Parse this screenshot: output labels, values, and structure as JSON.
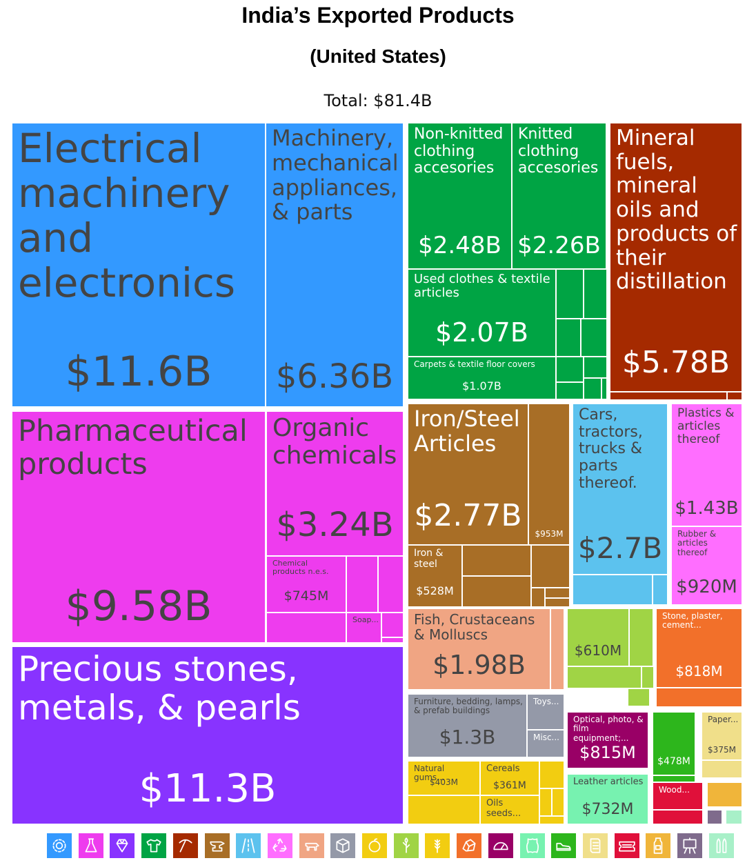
{
  "title": "India’s Exported Products",
  "subtitle": "(United States)",
  "total": "Total: $81.4B",
  "chart_data": {
    "type": "treemap",
    "title": "India’s Exported Products",
    "subtitle": "(United States)",
    "total": "$81.4B",
    "items": [
      {
        "id": "electrical",
        "label": "Electrical machinery and electronics",
        "value": "$11.6B",
        "color": "#3399ff"
      },
      {
        "id": "machinery",
        "label": "Machinery, mechanical appliances, & parts",
        "value": "$6.36B",
        "color": "#3399ff"
      },
      {
        "id": "nonknit",
        "label": "Non-knitted clothing accesories",
        "value": "$2.48B",
        "color": "#00a444"
      },
      {
        "id": "knit",
        "label": "Knitted clothing accesories",
        "value": "$2.26B",
        "color": "#00a444"
      },
      {
        "id": "usedclothes",
        "label": "Used clothes & textile articles",
        "value": "$2.07B",
        "color": "#00a444"
      },
      {
        "id": "carpets",
        "label": "Carpets & textile floor covers",
        "value": "$1.07B",
        "color": "#00a444"
      },
      {
        "id": "mineral",
        "label": "Mineral fuels, mineral oils and products of their distillation",
        "value": "$5.78B",
        "color": "#a52a00"
      },
      {
        "id": "pharma",
        "label": "Pharmaceutical products",
        "value": "$9.58B",
        "color": "#ee3cee"
      },
      {
        "id": "organic",
        "label": "Organic chemicals",
        "value": "$3.24B",
        "color": "#ee3cee"
      },
      {
        "id": "chemical",
        "label": "Chemical products n.e.s.",
        "value": "$745M",
        "color": "#ee3cee"
      },
      {
        "id": "soap",
        "label": "Soap...",
        "value": "",
        "color": "#ee3cee"
      },
      {
        "id": "precious",
        "label": "Precious stones, metals, & pearls",
        "value": "$11.3B",
        "color": "#8833ff"
      },
      {
        "id": "ironsteelart",
        "label": "Iron/Steel Articles",
        "value": "$2.77B",
        "color": "#a86e26"
      },
      {
        "id": "metal953",
        "label": "",
        "value": "$953M",
        "color": "#a86e26"
      },
      {
        "id": "ironsteel",
        "label": "Iron & steel",
        "value": "$528M",
        "color": "#a86e26"
      },
      {
        "id": "cars",
        "label": "Cars, tractors, trucks & parts thereof.",
        "value": "$2.7B",
        "color": "#5cc2ee"
      },
      {
        "id": "plastics",
        "label": "Plastics & articles thereof",
        "value": "$1.43B",
        "color": "#ff6eff"
      },
      {
        "id": "rubber",
        "label": "Rubber & articles thereof",
        "value": "$920M",
        "color": "#ff6eff"
      },
      {
        "id": "fish",
        "label": "Fish, Crustaceans & Molluscs",
        "value": "$1.98B",
        "color": "#f0a583"
      },
      {
        "id": "veg610",
        "label": "",
        "value": "$610M",
        "color": "#a0d445"
      },
      {
        "id": "stone",
        "label": "Stone, plaster, cement...",
        "value": "$818M",
        "color": "#f2702a"
      },
      {
        "id": "furniture",
        "label": "Furniture, bedding, lamps, & prefab buildings",
        "value": "$1.3B",
        "color": "#9499a8"
      },
      {
        "id": "toys",
        "label": "Toys...",
        "value": "",
        "color": "#9499a8"
      },
      {
        "id": "misc",
        "label": "Misc...",
        "value": "",
        "color": "#9499a8"
      },
      {
        "id": "optical",
        "label": "Optical, photo, & film equipment;...",
        "value": "$815M",
        "color": "#990066"
      },
      {
        "id": "footwear",
        "label": "",
        "value": "$478M",
        "color": "#2db61c"
      },
      {
        "id": "paper",
        "label": "Paper...",
        "value": "$375M",
        "color": "#f0df8a"
      },
      {
        "id": "gums",
        "label": "Natural gums...",
        "value": "$403M",
        "color": "#f2cd11"
      },
      {
        "id": "cereals",
        "label": "Cereals",
        "value": "$361M",
        "color": "#f2cd11"
      },
      {
        "id": "oils",
        "label": "Oils seeds...",
        "value": "",
        "color": "#f2cd11"
      },
      {
        "id": "leather",
        "label": "Leather articles",
        "value": "$732M",
        "color": "#77f2b0"
      },
      {
        "id": "wood",
        "label": "Wood...",
        "value": "",
        "color": "#e0103a"
      }
    ],
    "legend": [
      {
        "icon": "gear-icon",
        "color": "#3399ff"
      },
      {
        "icon": "flask-icon",
        "color": "#ee3cee"
      },
      {
        "icon": "diamond-icon",
        "color": "#8833ff"
      },
      {
        "icon": "shirt-icon",
        "color": "#00a444"
      },
      {
        "icon": "pickaxe-icon",
        "color": "#a52a00"
      },
      {
        "icon": "anvil-icon",
        "color": "#a86e26"
      },
      {
        "icon": "road-icon",
        "color": "#5cc2ee"
      },
      {
        "icon": "recycle-icon",
        "color": "#ff6eff"
      },
      {
        "icon": "animal-icon",
        "color": "#f0a583"
      },
      {
        "icon": "box-icon",
        "color": "#9499a8"
      },
      {
        "icon": "fruit-icon",
        "color": "#f2cd11"
      },
      {
        "icon": "leaf-icon",
        "color": "#a0d445"
      },
      {
        "icon": "wheat-icon",
        "color": "#f2cd11"
      },
      {
        "icon": "rock-icon",
        "color": "#f2702a"
      },
      {
        "icon": "gauge-icon",
        "color": "#990066"
      },
      {
        "icon": "hide-icon",
        "color": "#77f2b0"
      },
      {
        "icon": "shoe-icon",
        "color": "#2db61c"
      },
      {
        "icon": "scroll-icon",
        "color": "#f0df8a"
      },
      {
        "icon": "ticket-icon",
        "color": "#e0103a"
      },
      {
        "icon": "bottle-icon",
        "color": "#f0b53a"
      },
      {
        "icon": "easel-icon",
        "color": "#7f6b8c"
      },
      {
        "icon": "bullets-icon",
        "color": "#a8f0c8"
      }
    ]
  }
}
